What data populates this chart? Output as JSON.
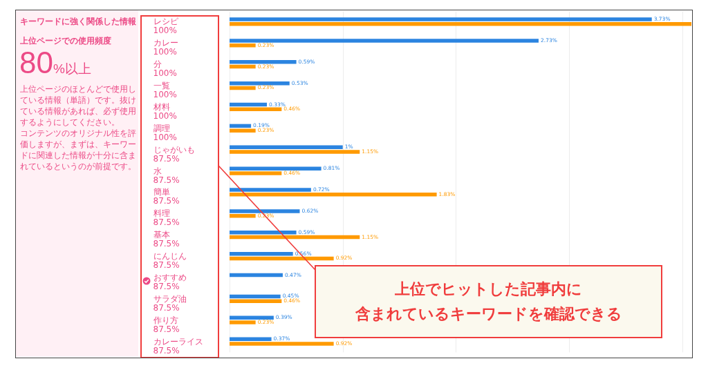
{
  "chart_data": {
    "type": "bar",
    "orientation": "horizontal",
    "title": "キーワードに強く関係した情報",
    "subtitle": "上位ページでの使用頻度",
    "annotations": [
      "80%以上",
      "上位ページのほとんどで使用している情報（単語）です。抜けている情報があれば、必ず使用するようにしてください。",
      "コンテンツのオリジナル性を評価しますが、まずは、キーワードに関連した情報が十分に含まれているというのが前提です。",
      "上位でヒットした記事内に",
      "含まれているキーワードを確認できる"
    ],
    "categories": [
      "レシピ\n100%",
      "カレー\n100%",
      "分\n100%",
      "一覧\n100%",
      "材料\n100%",
      "調理\n100%",
      "じゃがいも\n87.5%",
      "水\n87.5%",
      "簡単\n87.5%",
      "料理\n87.5%",
      "基本\n87.5%",
      "にんじん\n87.5%",
      "おすすめ\n87.5%",
      "サラダ油\n87.5%",
      "作り方\n87.5%",
      "カレーライス\n87.5%"
    ],
    "series": [
      {
        "color": "#2b84e0",
        "values": [
          3.73,
          2.73,
          0.59,
          0.53,
          0.33,
          0.19,
          1,
          0.81,
          0.72,
          0.62,
          0.59,
          0.56,
          0.47,
          0.45,
          0.39,
          0.37
        ],
        "value_labels": [
          "3.73%",
          "2.73%",
          "0.59%",
          "0.53%",
          "0.33%",
          "0.19%",
          "1%",
          "0.81%",
          "0.72%",
          "0.62%",
          "0.59%",
          "0.56%",
          "0.47%",
          "0.45%",
          "0.39%",
          "0.37%"
        ]
      },
      {
        "color": "#ff9a00",
        "values": [
          4.08,
          0.23,
          0.23,
          0.23,
          0.46,
          0.23,
          1.15,
          0.46,
          1.83,
          0.23,
          1.15,
          0.92,
          null,
          0.46,
          0.23,
          0.92
        ],
        "value_labels": [
          null,
          "0.23%",
          "0.23%",
          "0.23%",
          "0.46%",
          "0.23%",
          "1.15%",
          "0.46%",
          "1.83%",
          "0.23%",
          "1.15%",
          "0.92%",
          null,
          "0.46%",
          "0.23%",
          "0.92%"
        ]
      }
    ],
    "xlim": [
      0,
      4.08
    ],
    "xticks": [
      {
        "value": 0,
        "label": null
      },
      {
        "value": 1,
        "label": null
      },
      {
        "value": 2,
        "label": null
      },
      {
        "value": 3,
        "label": null
      },
      {
        "value": 4,
        "label": null
      }
    ],
    "grid": "x",
    "tick_labels": "y"
  }
}
